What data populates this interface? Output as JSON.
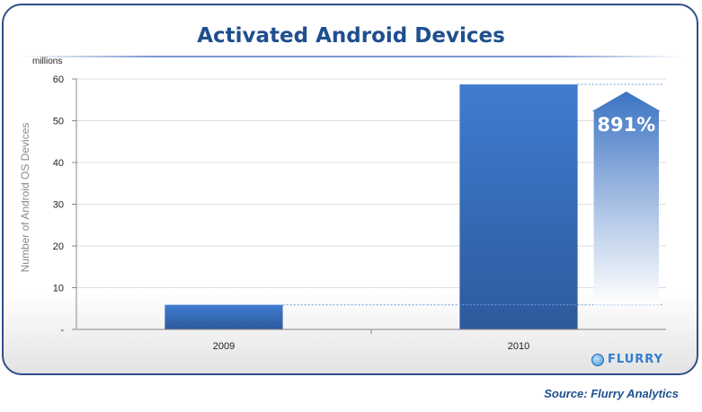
{
  "chart_data": {
    "type": "bar",
    "title": "Activated Android Devices",
    "unit_label": "millions",
    "ylabel": "Number of Android OS Devices",
    "xlabel": "",
    "categories": [
      "2009",
      "2010"
    ],
    "values": [
      5.9,
      58.7
    ],
    "ylim": [
      0,
      60
    ],
    "y_ticks": [
      {
        "value": 0,
        "label": "-"
      },
      {
        "value": 10,
        "label": "10"
      },
      {
        "value": 20,
        "label": "20"
      },
      {
        "value": 30,
        "label": "30"
      },
      {
        "value": 40,
        "label": "40"
      },
      {
        "value": 50,
        "label": "50"
      },
      {
        "value": 60,
        "label": "60"
      }
    ],
    "grid": true,
    "bar_color": "#3d73c4",
    "annotation": {
      "label": "891%",
      "from": 5.9,
      "to": 58.7
    }
  },
  "source": "Source: Flurry Analytics",
  "logo": {
    "text": "FLURRY",
    "icon": "flurry-logo-icon"
  }
}
